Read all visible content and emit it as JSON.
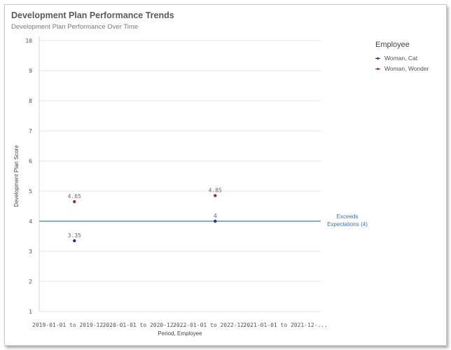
{
  "header": {
    "title": "Development Plan Performance Trends",
    "subtitle": "Development Plan Performance Over Time"
  },
  "legend": {
    "title": "Employee",
    "items": [
      "Woman, Cat",
      "Woman, Wonder"
    ]
  },
  "colors": {
    "series_1": "#2d2d8a",
    "series_2": "#8e2f4a",
    "reference": "#4a7ab8",
    "grid": "#e3e3e3"
  },
  "chart_data": {
    "type": "scatter",
    "title": "Development Plan Performance Trends",
    "subtitle": "Development Plan Performance Over Time",
    "xlabel": "Period, Employee",
    "ylabel": "Development Plan Score",
    "categories": [
      "2019-01-01 to 2019-12-...",
      "2020-01-01 to 2020-12-...",
      "2022-01-01 to 2022-12-...",
      "2021-01-01 to 2021-12-..."
    ],
    "ylim": [
      1,
      10
    ],
    "yticks": [
      1,
      2,
      3,
      4,
      5,
      6,
      7,
      8,
      9,
      10
    ],
    "grid": true,
    "legend_position": "top-right",
    "series": [
      {
        "name": "Woman, Cat",
        "values": [
          3.35,
          null,
          4,
          null
        ],
        "labels": [
          "3.35",
          "",
          "4",
          ""
        ]
      },
      {
        "name": "Woman, Wonder",
        "values": [
          4.65,
          null,
          4.85,
          null
        ],
        "labels": [
          "4.65",
          "",
          "4.85",
          ""
        ]
      }
    ],
    "reference_line": {
      "value": 4,
      "label_lines": [
        "Exceeds",
        "Expectations (4)"
      ]
    }
  }
}
